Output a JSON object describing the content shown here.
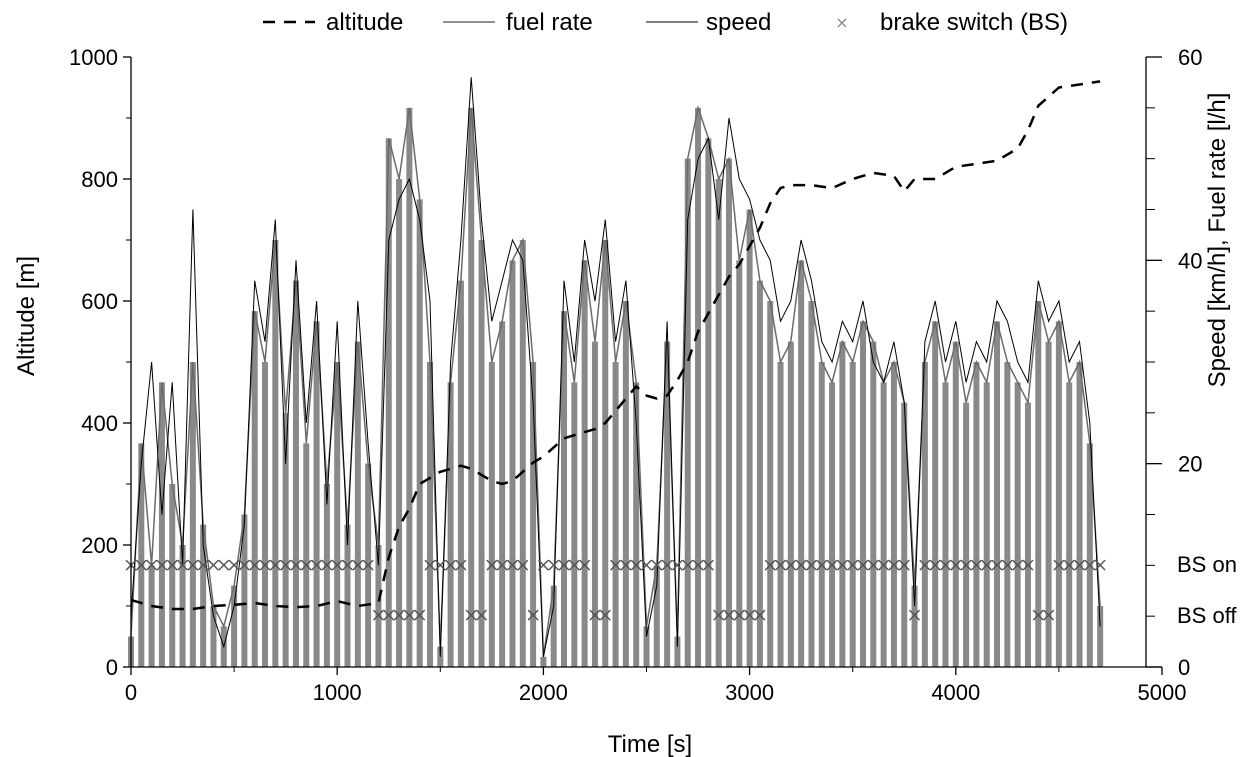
{
  "chart_data": {
    "type": "line",
    "title": "",
    "xlabel": "Time [s]",
    "ylabel_left": "Altitude [m]",
    "ylabel_right": "Speed [km/h], Fuel rate [l/h]",
    "xlim": [
      0,
      5000
    ],
    "ylim_left": [
      0,
      1000
    ],
    "ylim_right": [
      0,
      60
    ],
    "x_ticks": [
      "0",
      "1000",
      "2000",
      "3000",
      "4000",
      "5000"
    ],
    "y_left_ticks": [
      "0",
      "200",
      "400",
      "600",
      "800",
      "1000"
    ],
    "y_right_ticks": [
      "0",
      "20",
      "40",
      "60"
    ],
    "bs_labels": {
      "on": "BS on",
      "off": "BS off"
    },
    "bs_levels": {
      "on": 167,
      "off": 85
    },
    "legend": {
      "placement": "top",
      "entries": [
        "altitude",
        "fuel rate",
        "speed",
        "brake switch (BS)"
      ]
    },
    "colors": {
      "altitude": "#000000",
      "fuel_rate": "#6b6b6b",
      "speed": "#000000",
      "brake_switch": "#555555"
    },
    "series": [
      {
        "name": "altitude",
        "axis": "left",
        "x": [
          0,
          100,
          200,
          300,
          400,
          500,
          600,
          700,
          800,
          900,
          1000,
          1100,
          1200,
          1250,
          1300,
          1350,
          1400,
          1450,
          1500,
          1550,
          1600,
          1650,
          1700,
          1750,
          1800,
          1850,
          1900,
          1950,
          2000,
          2050,
          2100,
          2150,
          2200,
          2250,
          2300,
          2350,
          2400,
          2450,
          2500,
          2550,
          2600,
          2650,
          2700,
          2750,
          2800,
          2850,
          2900,
          2950,
          3000,
          3050,
          3100,
          3150,
          3200,
          3300,
          3400,
          3500,
          3600,
          3700,
          3750,
          3800,
          3900,
          4000,
          4100,
          4200,
          4300,
          4350,
          4400,
          4500,
          4600,
          4700
        ],
        "values": [
          110,
          100,
          95,
          95,
          100,
          102,
          105,
          100,
          98,
          100,
          108,
          100,
          105,
          180,
          230,
          260,
          300,
          310,
          320,
          325,
          330,
          325,
          315,
          305,
          300,
          305,
          320,
          335,
          345,
          360,
          375,
          380,
          385,
          390,
          400,
          420,
          440,
          460,
          445,
          440,
          445,
          470,
          500,
          550,
          580,
          610,
          640,
          660,
          690,
          720,
          760,
          785,
          790,
          790,
          785,
          800,
          810,
          805,
          780,
          800,
          800,
          820,
          825,
          830,
          850,
          880,
          920,
          950,
          955,
          960
        ]
      },
      {
        "name": "fuel rate",
        "axis": "right",
        "x": [
          0,
          50,
          100,
          150,
          200,
          250,
          300,
          350,
          400,
          450,
          500,
          550,
          600,
          650,
          700,
          750,
          800,
          850,
          900,
          950,
          1000,
          1050,
          1100,
          1150,
          1200,
          1250,
          1300,
          1350,
          1400,
          1450,
          1500,
          1550,
          1600,
          1650,
          1700,
          1750,
          1800,
          1850,
          1900,
          1950,
          2000,
          2050,
          2100,
          2150,
          2200,
          2250,
          2300,
          2350,
          2400,
          2450,
          2500,
          2550,
          2600,
          2650,
          2700,
          2750,
          2800,
          2850,
          2900,
          2950,
          3000,
          3050,
          3100,
          3150,
          3200,
          3250,
          3300,
          3350,
          3400,
          3450,
          3500,
          3550,
          3600,
          3650,
          3700,
          3750,
          3800,
          3850,
          3900,
          3950,
          4000,
          4050,
          4100,
          4150,
          4200,
          4250,
          4300,
          4350,
          4400,
          4450,
          4500,
          4550,
          4600,
          4650,
          4700
        ],
        "values": [
          3,
          22,
          10,
          28,
          18,
          12,
          30,
          14,
          6,
          4,
          8,
          15,
          35,
          30,
          42,
          25,
          38,
          22,
          34,
          18,
          30,
          14,
          32,
          20,
          12,
          52,
          48,
          55,
          46,
          30,
          2,
          28,
          38,
          55,
          42,
          30,
          34,
          40,
          42,
          30,
          1,
          8,
          35,
          28,
          40,
          32,
          42,
          30,
          36,
          28,
          4,
          10,
          32,
          3,
          50,
          55,
          52,
          48,
          50,
          40,
          45,
          38,
          36,
          30,
          32,
          40,
          36,
          30,
          28,
          32,
          30,
          34,
          32,
          28,
          30,
          26,
          8,
          30,
          34,
          28,
          32,
          26,
          30,
          28,
          34,
          30,
          28,
          26,
          36,
          32,
          34,
          28,
          30,
          22,
          6
        ]
      },
      {
        "name": "speed",
        "axis": "right",
        "x": [
          0,
          50,
          100,
          150,
          200,
          250,
          300,
          350,
          400,
          450,
          500,
          550,
          600,
          650,
          700,
          750,
          800,
          850,
          900,
          950,
          1000,
          1050,
          1100,
          1150,
          1200,
          1250,
          1300,
          1350,
          1400,
          1450,
          1500,
          1550,
          1600,
          1650,
          1700,
          1750,
          1800,
          1850,
          1900,
          1950,
          2000,
          2050,
          2100,
          2150,
          2200,
          2250,
          2300,
          2350,
          2400,
          2450,
          2500,
          2550,
          2600,
          2650,
          2700,
          2750,
          2800,
          2850,
          2900,
          2950,
          3000,
          3050,
          3100,
          3150,
          3200,
          3250,
          3300,
          3350,
          3400,
          3450,
          3500,
          3550,
          3600,
          3650,
          3700,
          3750,
          3800,
          3850,
          3900,
          3950,
          4000,
          4050,
          4100,
          4150,
          4200,
          4250,
          4300,
          4350,
          4400,
          4450,
          4500,
          4550,
          4600,
          4650,
          4700
        ],
        "values": [
          5,
          20,
          30,
          15,
          28,
          10,
          45,
          12,
          5,
          2,
          6,
          14,
          38,
          32,
          44,
          20,
          40,
          24,
          36,
          16,
          34,
          12,
          36,
          22,
          10,
          42,
          46,
          48,
          44,
          36,
          1,
          30,
          42,
          58,
          44,
          34,
          38,
          42,
          40,
          26,
          1,
          6,
          38,
          30,
          42,
          36,
          44,
          32,
          38,
          24,
          3,
          8,
          34,
          2,
          44,
          50,
          52,
          44,
          54,
          48,
          46,
          42,
          40,
          34,
          36,
          42,
          38,
          32,
          30,
          34,
          32,
          36,
          30,
          28,
          32,
          26,
          6,
          32,
          36,
          30,
          34,
          28,
          32,
          30,
          36,
          34,
          30,
          28,
          38,
          34,
          36,
          30,
          32,
          24,
          4
        ]
      },
      {
        "name": "brake switch (BS)",
        "axis": "left",
        "note_levels": "on=BS on, off=BS off",
        "x": [
          0,
          50,
          100,
          150,
          200,
          250,
          300,
          350,
          400,
          450,
          500,
          550,
          600,
          650,
          700,
          750,
          800,
          850,
          900,
          950,
          1000,
          1050,
          1100,
          1150,
          1200,
          1250,
          1300,
          1350,
          1400,
          1450,
          1500,
          1550,
          1600,
          1650,
          1700,
          1750,
          1800,
          1850,
          1900,
          1950,
          2000,
          2050,
          2100,
          2150,
          2200,
          2250,
          2300,
          2350,
          2400,
          2450,
          2500,
          2550,
          2600,
          2650,
          2700,
          2750,
          2800,
          2850,
          2900,
          2950,
          3000,
          3050,
          3100,
          3150,
          3200,
          3250,
          3300,
          3350,
          3400,
          3450,
          3500,
          3550,
          3600,
          3650,
          3700,
          3750,
          3800,
          3850,
          3900,
          3950,
          4000,
          4050,
          4100,
          4150,
          4200,
          4250,
          4300,
          4350,
          4400,
          4450,
          4500,
          4550,
          4600,
          4650,
          4700
        ],
        "values": [
          "on",
          "on",
          "on",
          "on",
          "on",
          "on",
          "on",
          "on",
          "on",
          "on",
          "on",
          "on",
          "on",
          "on",
          "on",
          "on",
          "on",
          "on",
          "on",
          "on",
          "on",
          "on",
          "on",
          "on",
          "off",
          "off",
          "off",
          "off",
          "off",
          "on",
          "on",
          "on",
          "on",
          "off",
          "off",
          "on",
          "on",
          "on",
          "on",
          "off",
          "on",
          "on",
          "on",
          "on",
          "on",
          "off",
          "off",
          "on",
          "on",
          "on",
          "on",
          "on",
          "on",
          "on",
          "on",
          "on",
          "on",
          "off",
          "off",
          "off",
          "off",
          "off",
          "on",
          "on",
          "on",
          "on",
          "on",
          "on",
          "on",
          "on",
          "on",
          "on",
          "on",
          "on",
          "on",
          "on",
          "off",
          "on",
          "on",
          "on",
          "on",
          "on",
          "on",
          "on",
          "on",
          "on",
          "on",
          "on",
          "off",
          "off",
          "on",
          "on",
          "on",
          "on",
          "on"
        ]
      }
    ]
  }
}
